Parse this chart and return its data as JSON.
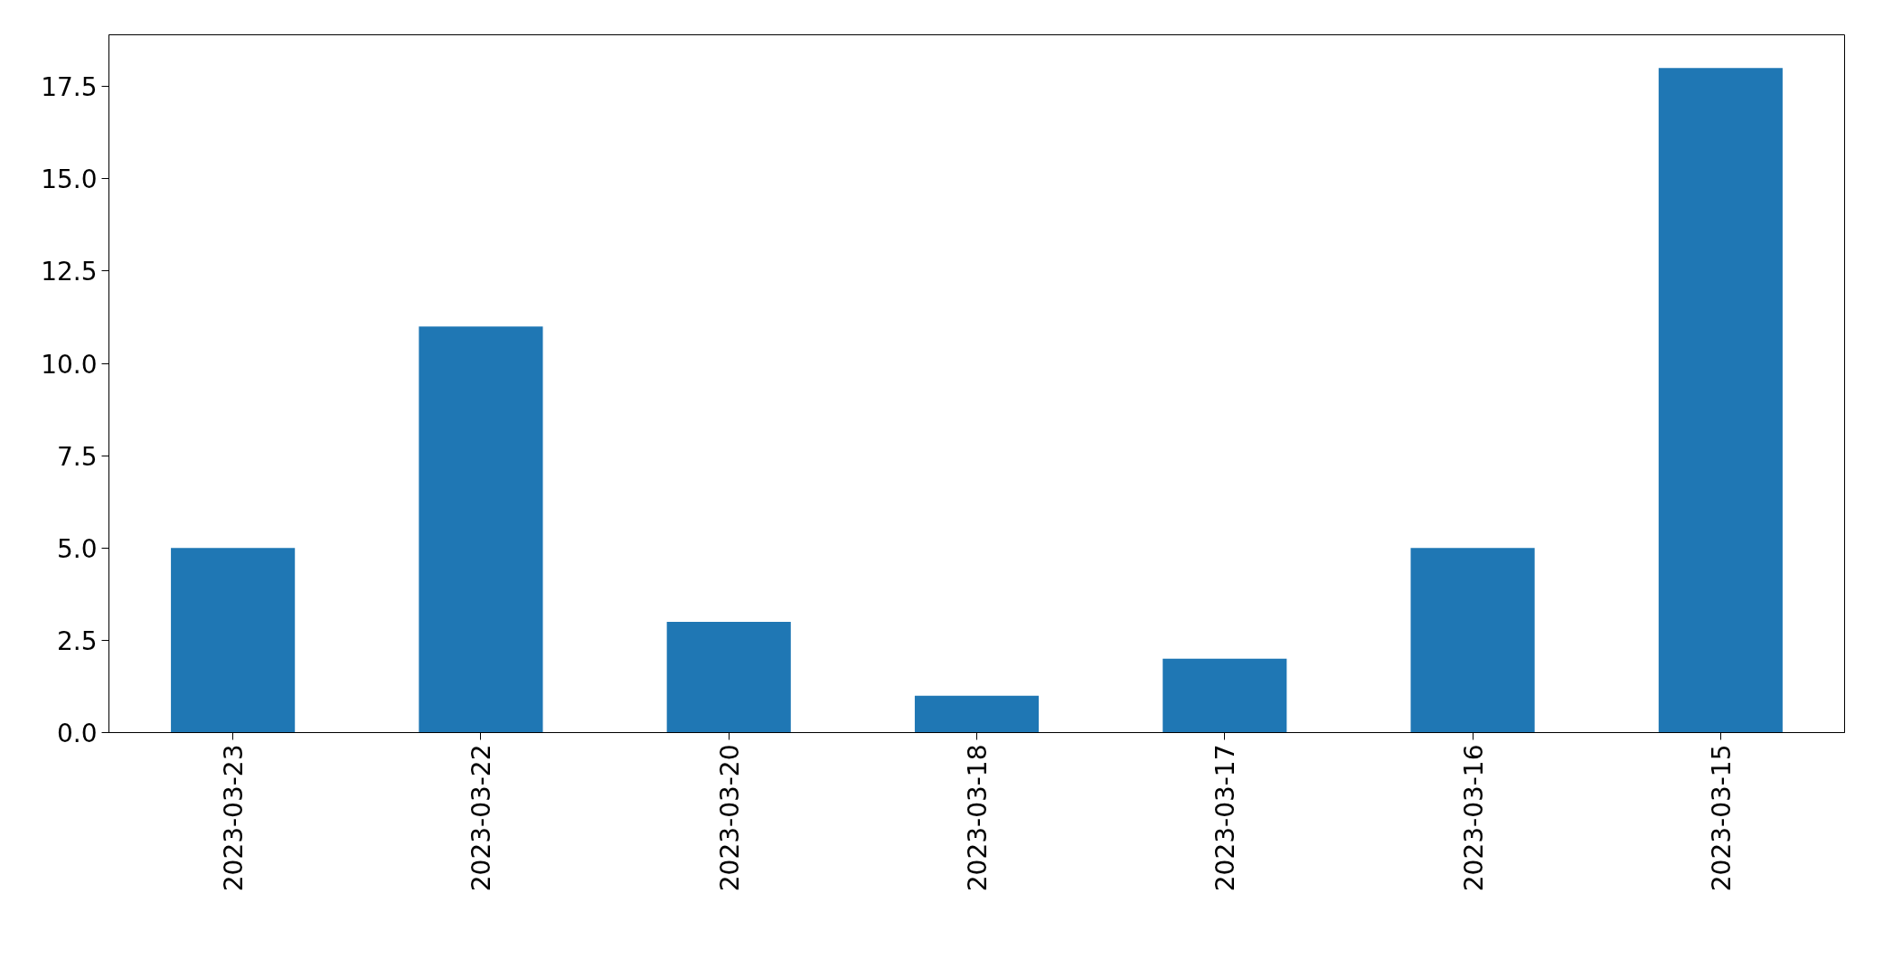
{
  "chart_data": {
    "type": "bar",
    "categories": [
      "2023-03-23",
      "2023-03-22",
      "2023-03-20",
      "2023-03-18",
      "2023-03-17",
      "2023-03-16",
      "2023-03-15"
    ],
    "values": [
      5,
      11,
      3,
      1,
      2,
      5,
      18
    ],
    "color": "#1f77b4",
    "ylim": [
      0,
      18.9
    ],
    "yticks": [
      {
        "value": 0,
        "label": "0.0"
      },
      {
        "value": 2.5,
        "label": "2.5"
      },
      {
        "value": 5,
        "label": "5.0"
      },
      {
        "value": 7.5,
        "label": "7.5"
      },
      {
        "value": 10,
        "label": "10.0"
      },
      {
        "value": 12.5,
        "label": "12.5"
      },
      {
        "value": 15,
        "label": "15.0"
      },
      {
        "value": 17.5,
        "label": "17.5"
      }
    ],
    "grid": false
  }
}
